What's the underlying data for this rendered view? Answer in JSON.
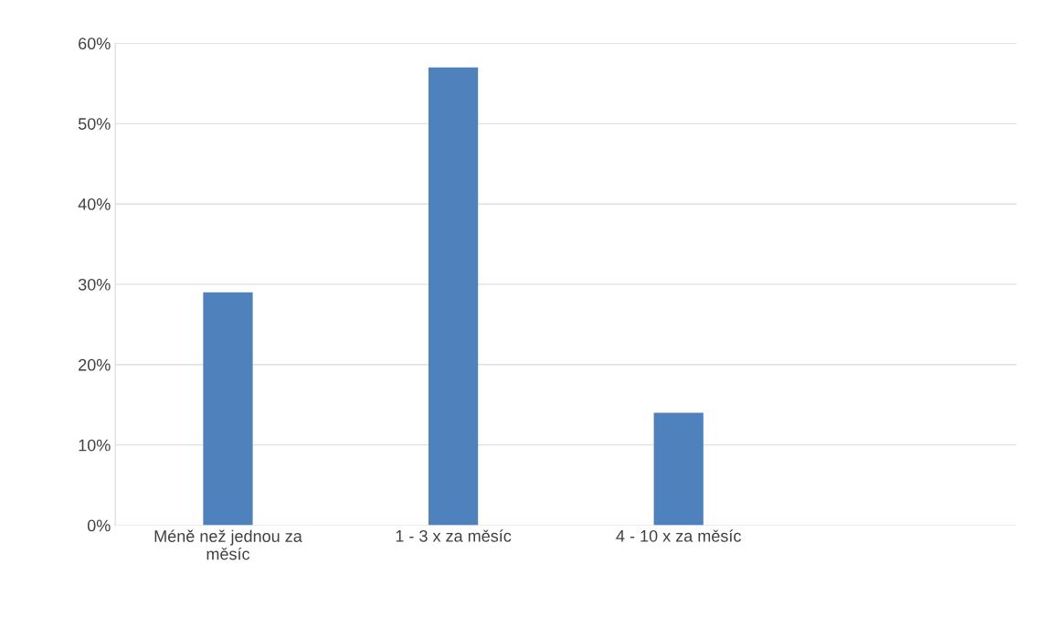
{
  "chart_data": {
    "type": "bar",
    "categories": [
      "Méně než jednou za měsíc",
      "1 - 3 x za měsíc",
      "4 - 10 x za měsíc",
      null
    ],
    "values": [
      29,
      57,
      14,
      null
    ],
    "color": "#4f81bd",
    "ylim": [
      0,
      60
    ],
    "yticks": [
      {
        "value": 0,
        "label": "0%"
      },
      {
        "value": 10,
        "label": "10%"
      },
      {
        "value": 20,
        "label": "20%"
      },
      {
        "value": 30,
        "label": "30%"
      },
      {
        "value": 40,
        "label": "40%"
      },
      {
        "value": 50,
        "label": "50%"
      },
      {
        "value": 60,
        "label": "60%"
      }
    ],
    "grid": "y"
  }
}
